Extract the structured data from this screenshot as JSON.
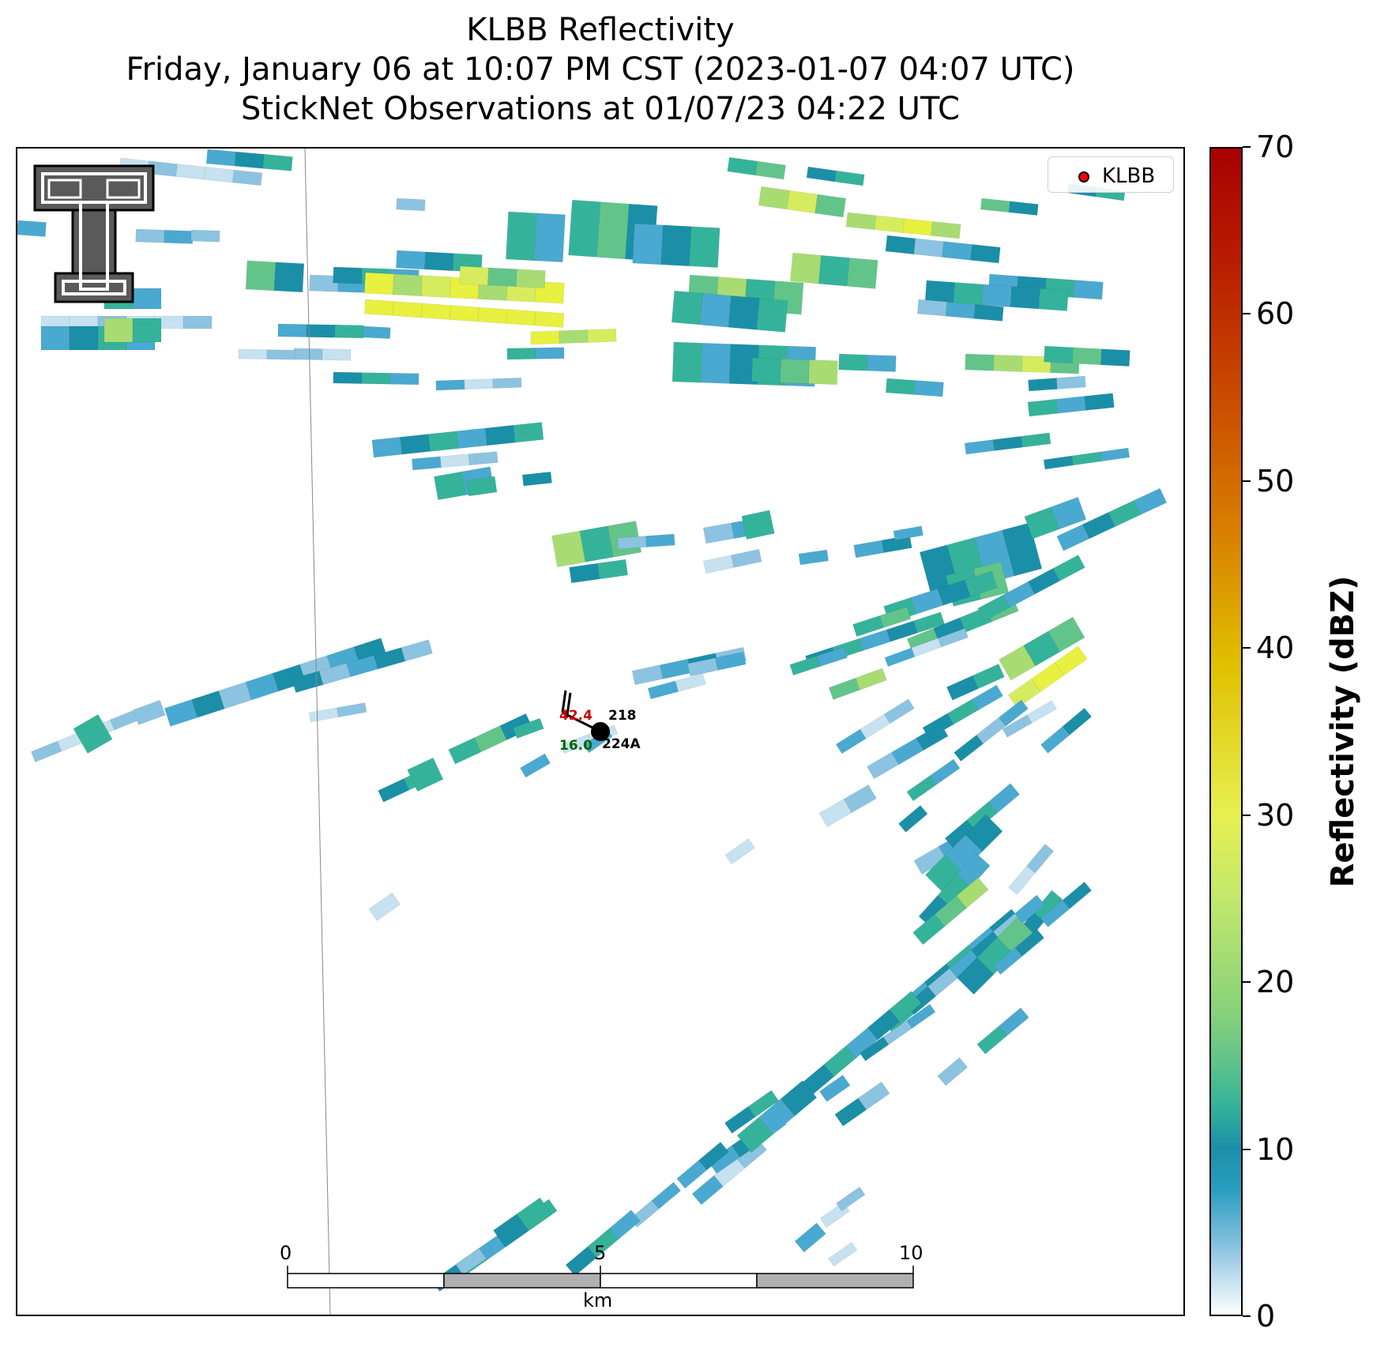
{
  "title": {
    "line1": "KLBB Reflectivity",
    "line2": "Friday, January 06 at 10:07 PM CST (2023-01-07 04:07 UTC)",
    "line3": "StickNet Observations at 01/07/23 04:22 UTC"
  },
  "legend": {
    "label": "KLBB",
    "marker_color": "#ff0000"
  },
  "station": {
    "id_top": "218",
    "id_bottom": "224A",
    "temperature": "42.4",
    "dewpoint": "16.0",
    "temp_color": "#cc0000",
    "dew_color": "#006600"
  },
  "scale_bar": {
    "unit": "km",
    "tick_labels": [
      "0",
      "5",
      "10"
    ]
  },
  "colorbar": {
    "title": "Reflectivity (dBZ)",
    "tick_labels": [
      "0",
      "10",
      "20",
      "30",
      "40",
      "50",
      "60",
      "70"
    ],
    "range": [
      0,
      70
    ]
  },
  "colors": {
    "low": "#c6e1f0",
    "light": "#8cc3e0",
    "blue": "#4aa9d0",
    "teal": "#1b8fa8",
    "teal_green": "#35b39a",
    "green": "#63c48a",
    "light_green": "#a8dc72",
    "yellow_green": "#d6ec5e",
    "yellow": "#e8f040"
  },
  "logo": {
    "name": "texas-tech-double-t-logo"
  }
}
